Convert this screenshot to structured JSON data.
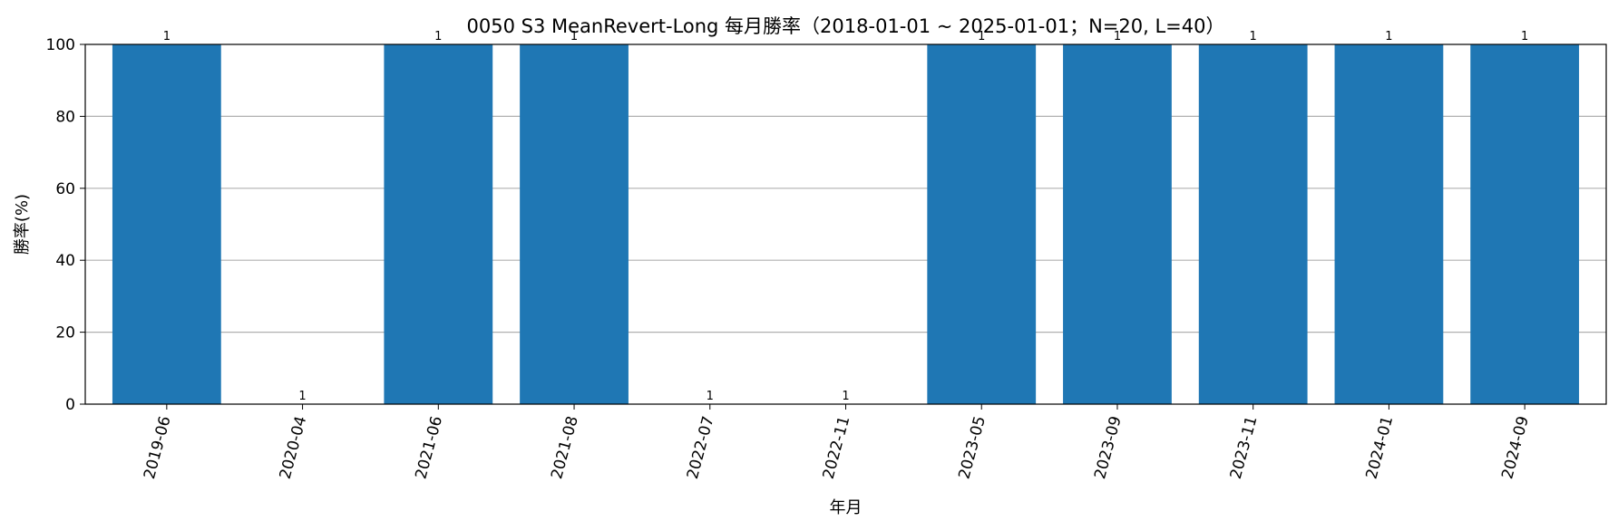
{
  "chart_data": {
    "type": "bar",
    "title": "0050 S3 MeanRevert-Long 每月勝率（2018-01-01 ~ 2025-01-01；N=20, L=40）",
    "xlabel": "年月",
    "ylabel": "勝率(%)",
    "ylim": [
      0,
      100
    ],
    "yticks": [
      0,
      20,
      40,
      60,
      80,
      100
    ],
    "grid": "y",
    "bar_color": "#1f77b4",
    "categories": [
      "2019-06",
      "2020-04",
      "2021-06",
      "2021-08",
      "2022-07",
      "2022-11",
      "2023-05",
      "2023-09",
      "2023-11",
      "2024-01",
      "2024-09"
    ],
    "values": [
      100,
      0,
      100,
      100,
      0,
      0,
      100,
      100,
      100,
      100,
      100
    ],
    "bar_labels": [
      "1",
      "1",
      "1",
      "1",
      "1",
      "1",
      "1",
      "1",
      "1",
      "1",
      "1"
    ]
  }
}
